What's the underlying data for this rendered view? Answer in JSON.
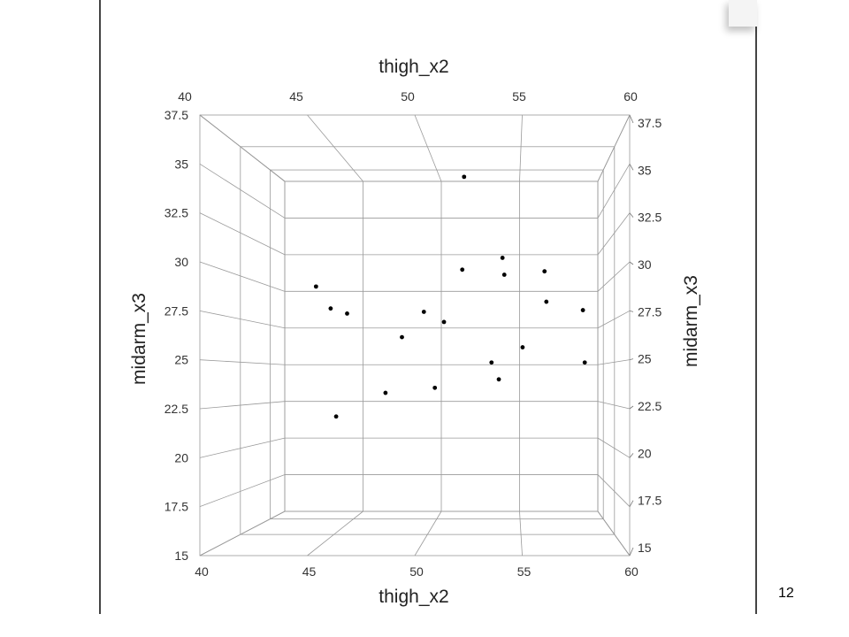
{
  "page_number": "12",
  "chart_data": {
    "type": "scatter",
    "title": "",
    "xlabel": "thigh_x2",
    "ylabel": "midarm_x3",
    "xlim": [
      40,
      60
    ],
    "ylim": [
      15,
      37.5
    ],
    "x_ticks": [
      "40",
      "45",
      "50",
      "55",
      "60"
    ],
    "y_ticks": [
      "15",
      "17.5",
      "20",
      "22.5",
      "25",
      "27.5",
      "30",
      "32.5",
      "35",
      "37.5"
    ],
    "grid": true,
    "point_color": "#000000",
    "series": [
      {
        "points": [
          {
            "x": 51.9,
            "y": 36.0
          },
          {
            "x": 43.8,
            "y": 29.5
          },
          {
            "x": 44.6,
            "y": 28.2
          },
          {
            "x": 45.5,
            "y": 27.9
          },
          {
            "x": 48.5,
            "y": 26.5
          },
          {
            "x": 49.7,
            "y": 28.0
          },
          {
            "x": 50.8,
            "y": 27.4
          },
          {
            "x": 51.8,
            "y": 30.5
          },
          {
            "x": 54.0,
            "y": 31.2
          },
          {
            "x": 54.1,
            "y": 30.2
          },
          {
            "x": 56.3,
            "y": 30.4
          },
          {
            "x": 56.4,
            "y": 28.6
          },
          {
            "x": 58.4,
            "y": 28.1
          },
          {
            "x": 58.5,
            "y": 25.0
          },
          {
            "x": 55.1,
            "y": 25.9
          },
          {
            "x": 53.4,
            "y": 25.0
          },
          {
            "x": 53.8,
            "y": 24.0
          },
          {
            "x": 50.3,
            "y": 23.5
          },
          {
            "x": 47.6,
            "y": 23.2
          },
          {
            "x": 44.9,
            "y": 21.8
          }
        ]
      }
    ]
  }
}
